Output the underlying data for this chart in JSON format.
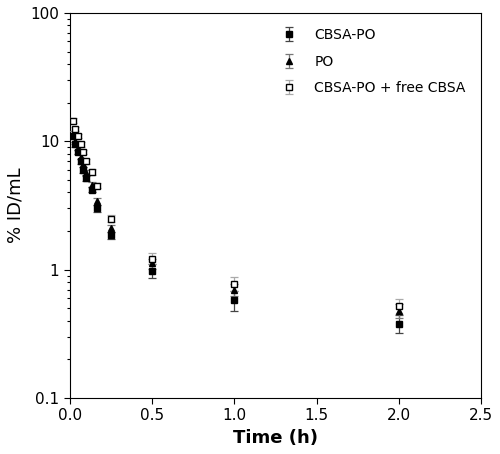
{
  "title": "",
  "xlabel": "Time (h)",
  "ylabel": "% ID/mL",
  "xlim": [
    0,
    2.5
  ],
  "ylim": [
    0.1,
    100
  ],
  "background_color": "#ffffff",
  "series": {
    "CBSA-PO": {
      "marker": "s",
      "mfc": "#000000",
      "mec": "#000000",
      "line_color": "#444444",
      "x": [
        0.017,
        0.033,
        0.05,
        0.067,
        0.083,
        0.1,
        0.133,
        0.167,
        0.25,
        0.5,
        1.0,
        2.0
      ],
      "y": [
        11.0,
        9.5,
        8.2,
        7.0,
        6.0,
        5.2,
        4.2,
        3.0,
        1.85,
        0.98,
        0.58,
        0.38
      ],
      "yerr": [
        0.4,
        0.4,
        0.3,
        0.3,
        0.3,
        0.3,
        0.2,
        0.2,
        0.12,
        0.12,
        0.1,
        0.06
      ]
    },
    "PO": {
      "marker": "^",
      "mfc": "#000000",
      "mec": "#000000",
      "line_color": "#777777",
      "x": [
        0.017,
        0.033,
        0.05,
        0.067,
        0.083,
        0.1,
        0.133,
        0.167,
        0.25,
        0.5,
        1.0,
        2.0
      ],
      "y": [
        11.5,
        10.0,
        8.8,
        7.6,
        6.6,
        5.7,
        4.6,
        3.4,
        2.1,
        1.12,
        0.7,
        0.48
      ],
      "yerr": [
        0.5,
        0.4,
        0.3,
        0.3,
        0.3,
        0.3,
        0.2,
        0.2,
        0.12,
        0.1,
        0.08,
        0.06
      ]
    },
    "CBSA-PO + free CBSA": {
      "marker": "s",
      "mfc": "#ffffff",
      "mec": "#000000",
      "line_color": "#aaaaaa",
      "x": [
        0.017,
        0.033,
        0.05,
        0.067,
        0.083,
        0.1,
        0.133,
        0.167,
        0.25,
        0.5,
        1.0,
        2.0
      ],
      "y": [
        14.5,
        12.5,
        11.0,
        9.5,
        8.2,
        7.0,
        5.8,
        4.5,
        2.5,
        1.22,
        0.78,
        0.52
      ],
      "yerr": [
        0.6,
        0.5,
        0.4,
        0.4,
        0.3,
        0.3,
        0.3,
        0.2,
        0.15,
        0.12,
        0.1,
        0.07
      ]
    }
  },
  "legend_order": [
    "CBSA-PO",
    "PO",
    "CBSA-PO + free CBSA"
  ],
  "label_fontsize": 13,
  "tick_fontsize": 11,
  "legend_fontsize": 10
}
